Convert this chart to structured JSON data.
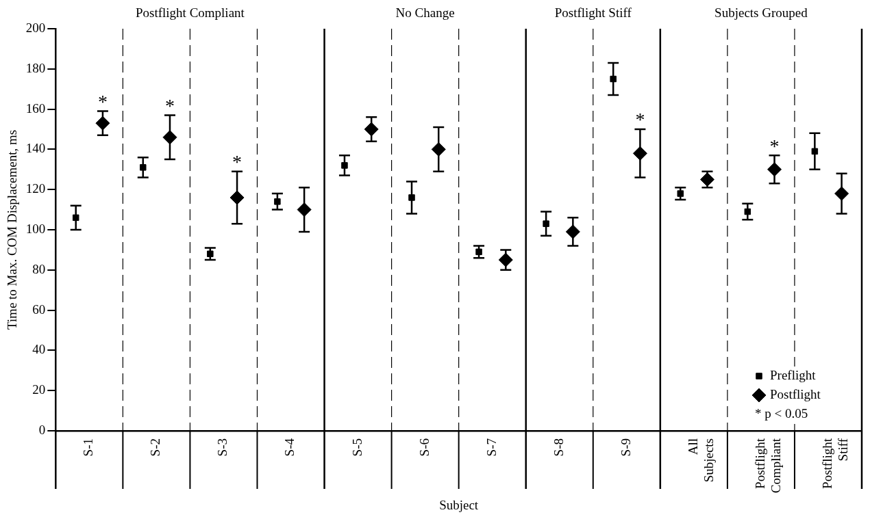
{
  "chart_data": {
    "type": "scatter",
    "xlabel": "Subject",
    "ylabel": "Time to Max. COM Displacement, ms",
    "categories": [
      "S-1",
      "S-2",
      "S-3",
      "S-4",
      "S-5",
      "S-6",
      "S-7",
      "S-8",
      "S-9",
      "All Subjects",
      "Postflight Compliant",
      "Postflight Stiff"
    ],
    "series": [
      {
        "name": "Preflight",
        "color": "#000000",
        "marker": "square",
        "values": [
          106,
          131,
          88,
          114,
          132,
          116,
          89,
          103,
          175,
          118,
          109,
          139
        ],
        "errors": [
          6,
          5,
          3,
          4,
          5,
          8,
          3,
          6,
          8,
          3,
          4,
          9
        ]
      },
      {
        "name": "Postflight",
        "color": "#000000",
        "marker": "diamond",
        "values": [
          153,
          146,
          116,
          110,
          150,
          140,
          85,
          99,
          138,
          125,
          130,
          118
        ],
        "errors": [
          6,
          11,
          13,
          11,
          6,
          11,
          5,
          7,
          12,
          4,
          7,
          10
        ],
        "value_labels": [
          "*",
          "*",
          "*",
          null,
          null,
          null,
          null,
          null,
          "*",
          null,
          "*",
          null
        ]
      }
    ],
    "annotations": [
      "Postflight Compliant",
      "No Change",
      "Postflight Stiff",
      "Subjects Grouped",
      "* p < 0.05"
    ],
    "ylim": [
      0,
      200
    ],
    "yticks": [
      0,
      20,
      40,
      60,
      80,
      100,
      120,
      140,
      160,
      180,
      200
    ],
    "grid": "x",
    "legend": "bottom right"
  }
}
